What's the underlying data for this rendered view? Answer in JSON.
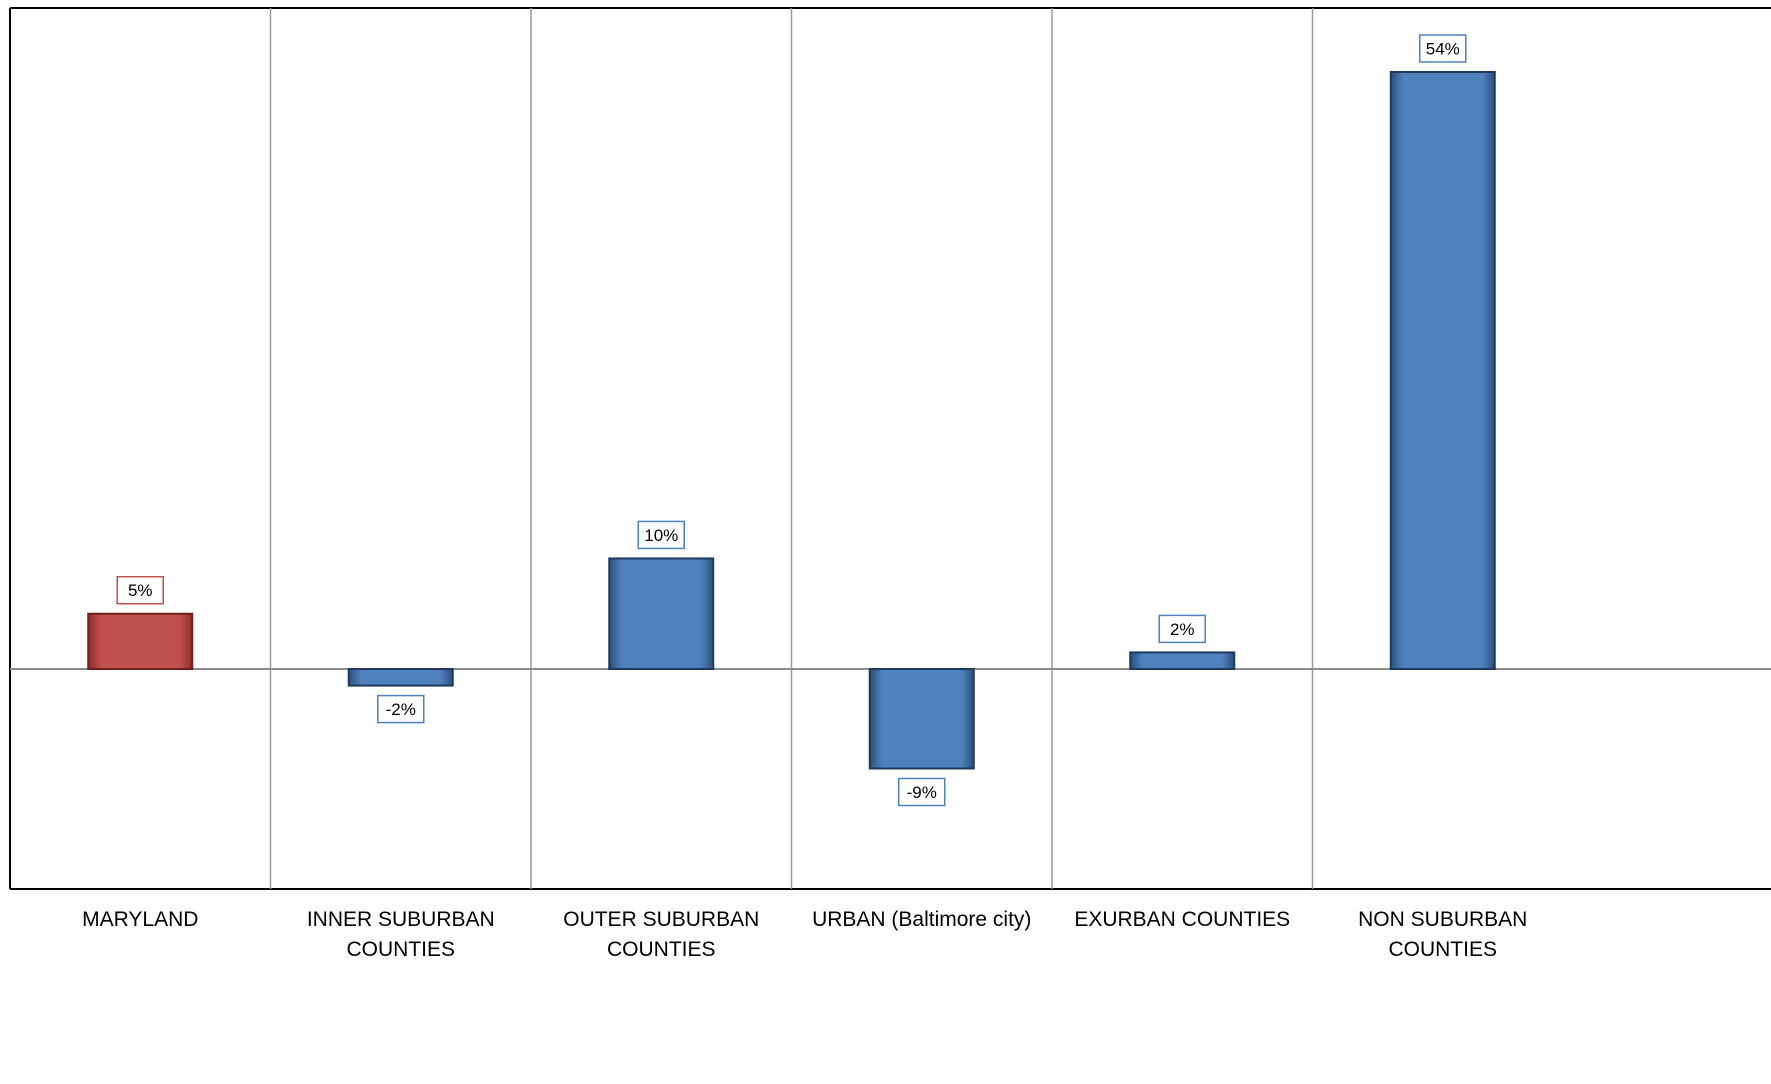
{
  "chart_data": {
    "type": "bar",
    "categories": [
      [
        "MARYLAND"
      ],
      [
        "INNER SUBURBAN",
        "COUNTIES"
      ],
      [
        "OUTER SUBURBAN",
        "COUNTIES"
      ],
      [
        "URBAN (Baltimore city)"
      ],
      [
        "EXURBAN COUNTIES"
      ],
      [
        "NON SUBURBAN",
        "COUNTIES"
      ]
    ],
    "values": [
      5,
      -1.5,
      10,
      -9,
      1.5,
      54
    ],
    "data_labels": [
      "5%",
      "-2%",
      "10%",
      "-9%",
      "2%",
      "54%"
    ],
    "colors": [
      "#C0504D",
      "#4F81BD",
      "#4F81BD",
      "#4F81BD",
      "#4F81BD",
      "#4F81BD"
    ],
    "ylim": [
      -20,
      60
    ],
    "grid": "vertical separators between categories",
    "title": "",
    "xlabel": "",
    "ylabel": ""
  }
}
